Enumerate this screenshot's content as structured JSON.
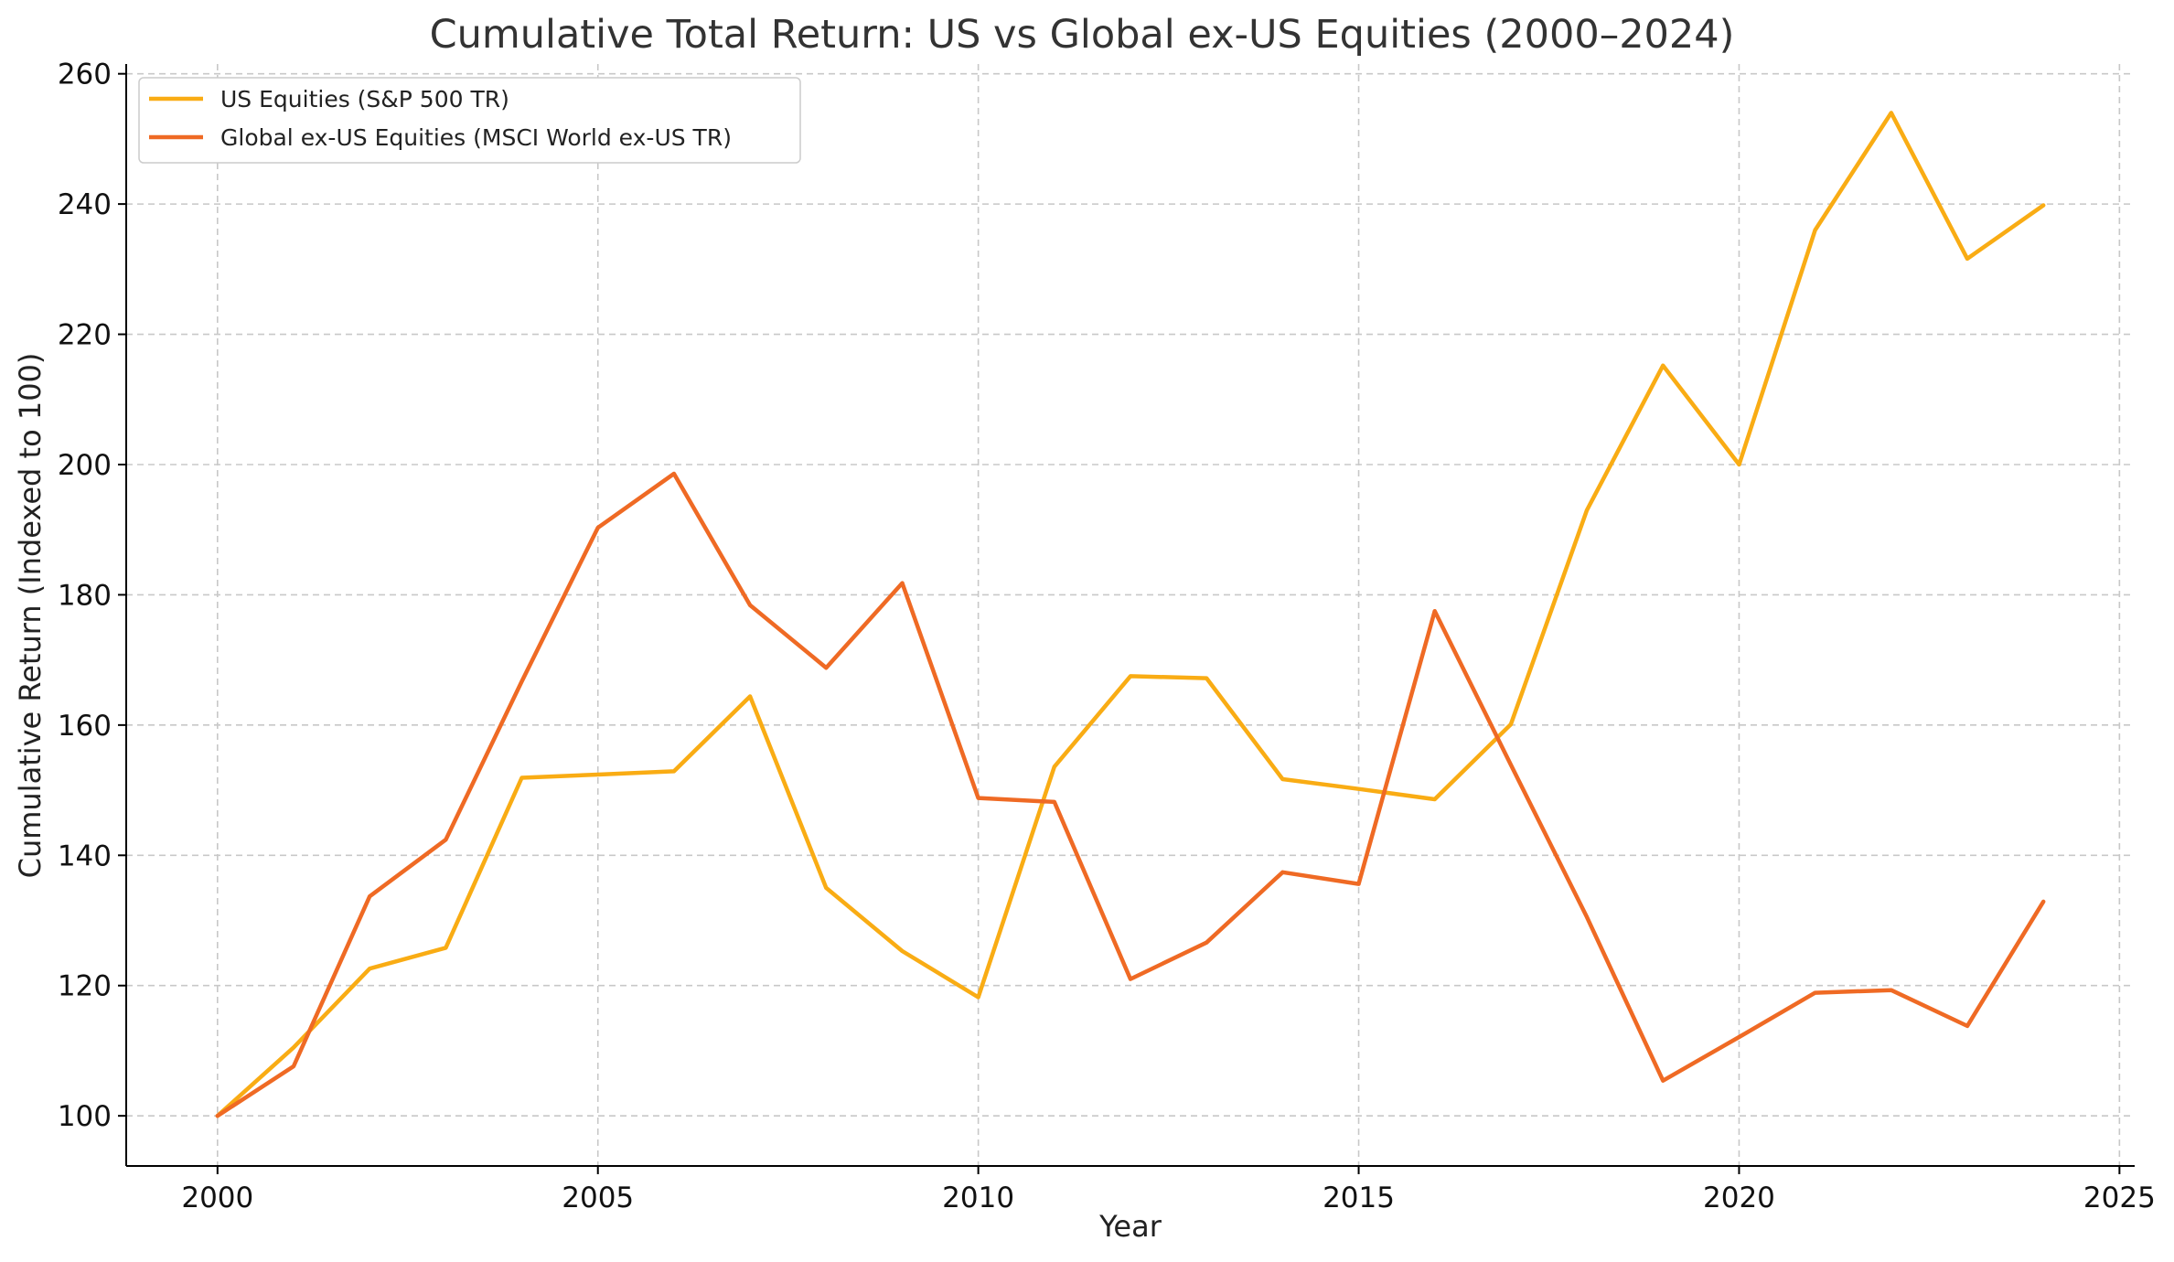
{
  "chart_data": {
    "type": "line",
    "title": "Cumulative Total Return: US vs Global ex-US Equities (2000–2024)",
    "xlabel": "Year",
    "ylabel": "Cumulative Return (Indexed to 100)",
    "xlim": [
      1998.8,
      2025.2
    ],
    "ylim": [
      92.3,
      261.5
    ],
    "xticks": [
      2000,
      2005,
      2010,
      2015,
      2020,
      2025
    ],
    "yticks": [
      100,
      120,
      140,
      160,
      180,
      200,
      220,
      240,
      260
    ],
    "grid": true,
    "legend_position": "top-left",
    "x": [
      2000,
      2001,
      2002,
      2003,
      2004,
      2005,
      2006,
      2007,
      2008,
      2009,
      2010,
      2011,
      2012,
      2013,
      2014,
      2015,
      2016,
      2017,
      2018,
      2019,
      2020,
      2021,
      2022,
      2023,
      2024
    ],
    "series": [
      {
        "name": "US Equities (S&P 500 TR)",
        "color": "#F9AC14",
        "values": [
          100.0,
          110.5,
          122.6,
          125.8,
          151.9,
          152.4,
          152.9,
          164.4,
          135.0,
          125.3,
          118.2,
          153.6,
          167.5,
          167.2,
          151.7,
          150.2,
          148.6,
          160.1,
          193.0,
          215.2,
          200.0,
          236.0,
          254.0,
          231.6,
          239.8
        ]
      },
      {
        "name": "Global ex-US Equities (MSCI World ex-US TR)",
        "color": "#EF6A24",
        "values": [
          100.0,
          107.6,
          133.7,
          142.4,
          166.7,
          190.3,
          198.6,
          178.4,
          168.8,
          181.8,
          148.8,
          148.2,
          121.0,
          126.6,
          137.4,
          135.6,
          177.5,
          153.9,
          130.5,
          105.4,
          112.1,
          118.9,
          119.3,
          113.8,
          132.9
        ]
      }
    ]
  }
}
